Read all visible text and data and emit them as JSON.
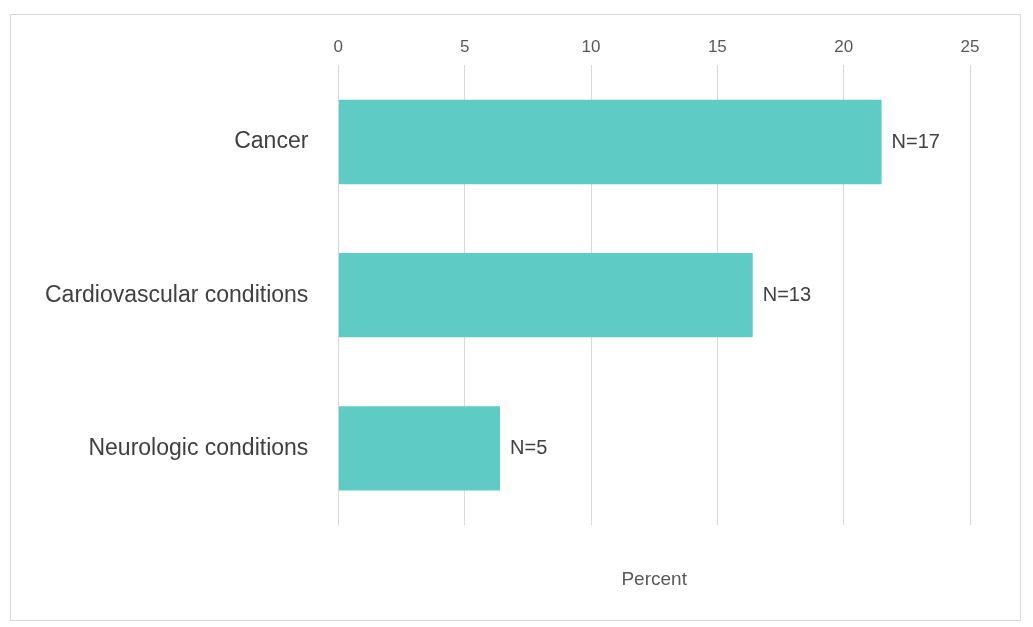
{
  "chart_data": {
    "type": "bar",
    "orientation": "horizontal",
    "xlabel": "Percent",
    "categories": [
      "Cancer",
      "Cardiovascular conditions",
      "Neurologic conditions"
    ],
    "values": [
      21.5,
      16.4,
      6.4
    ],
    "color": "#5ecbc4",
    "annotations": [
      {
        "text": "N=17",
        "x": 21.5,
        "y": "Cancer"
      },
      {
        "text": "N=13",
        "x": 16.4,
        "y": "Cardiovascular conditions"
      },
      {
        "text": "N=5",
        "x": 6.4,
        "y": "Neurologic conditions"
      }
    ],
    "xlim": [
      0,
      25
    ],
    "xticks": [
      0,
      5,
      10,
      15,
      20,
      25
    ],
    "grid": "x",
    "legend": false
  }
}
